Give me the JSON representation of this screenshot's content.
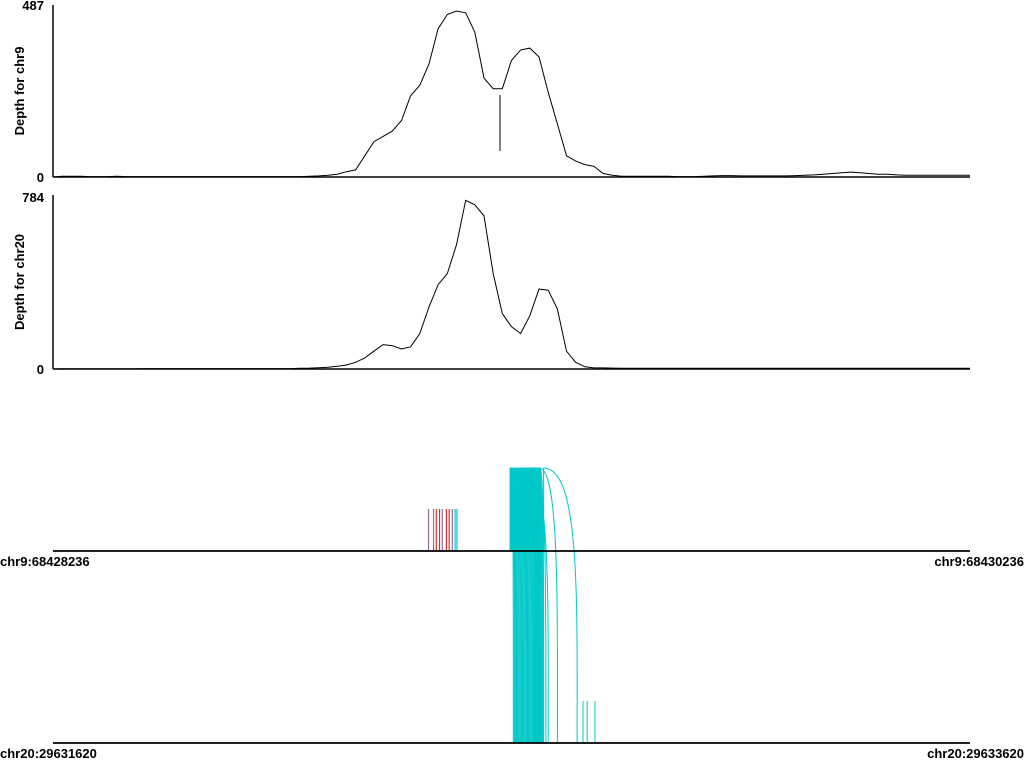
{
  "chart_data": [
    {
      "type": "line",
      "ylabel": "Depth for chr9",
      "ylim": [
        0,
        487
      ],
      "ytick_labels": [
        "0",
        "487"
      ],
      "x": [
        0,
        20,
        40,
        60,
        80,
        100,
        120,
        140,
        160,
        180,
        200,
        220,
        240,
        260,
        280,
        300,
        320,
        340,
        360,
        380,
        400,
        420,
        440,
        460,
        480,
        500,
        520,
        540,
        560,
        580,
        600,
        620,
        640,
        660,
        680,
        700,
        720,
        740,
        760,
        780,
        800,
        820,
        840,
        860,
        880,
        900,
        920,
        940,
        960,
        980,
        1000,
        1020,
        1040,
        1060,
        1080,
        1100,
        1120,
        1140,
        1160,
        1180,
        1200,
        1220,
        1240,
        1260,
        1280,
        1300,
        1320,
        1340,
        1360,
        1380,
        1400,
        1420,
        1440,
        1460,
        1480,
        1500,
        1520,
        1540,
        1560,
        1580,
        1600,
        1620,
        1640,
        1660,
        1680,
        1700,
        1720,
        1740,
        1760,
        1780,
        1800,
        1820,
        1840,
        1860,
        1880,
        1900,
        1920,
        1940,
        1960,
        1980,
        2000
      ],
      "values": [
        0,
        2,
        2,
        2,
        1,
        1,
        1,
        2,
        1,
        1,
        1,
        1,
        1,
        1,
        1,
        1,
        1,
        1,
        1,
        1,
        1,
        1,
        1,
        1,
        1,
        1,
        1,
        1,
        2,
        3,
        5,
        8,
        15,
        20,
        60,
        100,
        115,
        130,
        160,
        230,
        260,
        320,
        420,
        460,
        470,
        465,
        410,
        280,
        250,
        250,
        330,
        360,
        365,
        340,
        240,
        150,
        60,
        45,
        35,
        30,
        10,
        5,
        2,
        2,
        2,
        2,
        2,
        2,
        1,
        1,
        1,
        2,
        3,
        4,
        4,
        3,
        3,
        3,
        3,
        3,
        3,
        4,
        5,
        6,
        8,
        10,
        12,
        14,
        12,
        10,
        8,
        8,
        6,
        5,
        5,
        5,
        5,
        5,
        5,
        5,
        5
      ]
    },
    {
      "type": "line",
      "ylabel": "Depth for chr20",
      "ylim": [
        0,
        784
      ],
      "ytick_labels": [
        "0",
        "784"
      ],
      "x": [
        0,
        20,
        40,
        60,
        80,
        100,
        120,
        140,
        160,
        180,
        200,
        220,
        240,
        260,
        280,
        300,
        320,
        340,
        360,
        380,
        400,
        420,
        440,
        460,
        480,
        500,
        520,
        540,
        560,
        580,
        600,
        620,
        640,
        660,
        680,
        700,
        720,
        740,
        760,
        780,
        800,
        820,
        840,
        860,
        880,
        900,
        920,
        940,
        960,
        980,
        1000,
        1020,
        1040,
        1060,
        1080,
        1100,
        1120,
        1140,
        1160,
        1180,
        1200,
        1220,
        1240,
        1260,
        1280,
        1300,
        1320,
        1340,
        1360,
        1380,
        1400,
        1420,
        1440,
        1460,
        1480,
        1500,
        1520,
        1540,
        1560,
        1580,
        1600,
        1620,
        1640,
        1660,
        1680,
        1700,
        1720,
        1740,
        1760,
        1780,
        1800,
        1820,
        1840,
        1860,
        1880,
        1900,
        1920,
        1940,
        1960,
        1980,
        2000
      ],
      "values": [
        0,
        1,
        1,
        1,
        1,
        1,
        1,
        1,
        1,
        1,
        2,
        2,
        2,
        2,
        2,
        2,
        2,
        2,
        2,
        2,
        2,
        2,
        2,
        2,
        2,
        2,
        2,
        3,
        4,
        6,
        8,
        12,
        18,
        30,
        50,
        80,
        110,
        105,
        90,
        100,
        160,
        280,
        380,
        430,
        560,
        760,
        740,
        690,
        430,
        250,
        190,
        160,
        240,
        360,
        355,
        270,
        80,
        30,
        10,
        5,
        5,
        4,
        3,
        3,
        3,
        3,
        3,
        3,
        3,
        3,
        3,
        3,
        3,
        3,
        3,
        3,
        3,
        3,
        3,
        3,
        3,
        3,
        3,
        3,
        3,
        3,
        3,
        3,
        3,
        3,
        3,
        3,
        3,
        3,
        3,
        3,
        3,
        3,
        3,
        3,
        3
      ]
    }
  ],
  "tracks": {
    "top": {
      "start_label": "chr9:68428236",
      "end_label": "chr9:68430236"
    },
    "bottom": {
      "start_label": "chr20:29631620",
      "end_label": "chr20:29633620"
    }
  },
  "links": {
    "colors": {
      "cyan": "#00c8c8",
      "purple": "#8a6fa0",
      "red": "#e03030"
    },
    "chr9_ticks": [
      {
        "pos": 819,
        "color": "purple"
      },
      {
        "pos": 830,
        "color": "purple"
      },
      {
        "pos": 836,
        "color": "red"
      },
      {
        "pos": 843,
        "color": "red"
      },
      {
        "pos": 849,
        "color": "purple"
      },
      {
        "pos": 858,
        "color": "red"
      },
      {
        "pos": 864,
        "color": "red"
      },
      {
        "pos": 871,
        "color": "purple"
      },
      {
        "pos": 877,
        "color": "cyan"
      },
      {
        "pos": 881,
        "color": "cyan"
      }
    ],
    "cyan_connections": [
      [
        997,
        1004
      ],
      [
        999,
        1006
      ],
      [
        1001,
        1008
      ],
      [
        1003,
        1010
      ],
      [
        1005,
        1012
      ],
      [
        1007,
        1014
      ],
      [
        1009,
        1016
      ],
      [
        1011,
        1018
      ],
      [
        1013,
        1020
      ],
      [
        1015,
        1022
      ],
      [
        1017,
        1024
      ],
      [
        1019,
        1026
      ],
      [
        1021,
        1028
      ],
      [
        1023,
        1030
      ],
      [
        1025,
        1032
      ],
      [
        1027,
        1034
      ],
      [
        1029,
        1036
      ],
      [
        1031,
        1038
      ],
      [
        1033,
        1040
      ],
      [
        1035,
        1042
      ],
      [
        1037,
        1044
      ],
      [
        1039,
        1046
      ],
      [
        1041,
        1048
      ],
      [
        1043,
        1050
      ],
      [
        1045,
        1052
      ],
      [
        1047,
        1054
      ],
      [
        1049,
        1056
      ],
      [
        1051,
        1058
      ],
      [
        1053,
        1060
      ],
      [
        1055,
        1062
      ],
      [
        1057,
        1064
      ],
      [
        1059,
        1066
      ],
      [
        1061,
        1068
      ],
      [
        1063,
        1070
      ],
      [
        1030,
        1080
      ],
      [
        1040,
        1055
      ],
      [
        1050,
        1075
      ],
      [
        1038,
        1062
      ],
      [
        1055,
        1053
      ],
      [
        1060,
        1052
      ],
      [
        1045,
        1051
      ],
      [
        1055,
        1057
      ],
      [
        1058,
        1059
      ],
      [
        1055,
        1067
      ],
      [
        1056,
        1064
      ],
      [
        1048,
        1063
      ],
      [
        1052,
        1061
      ],
      [
        1062,
        1058
      ],
      [
        1063,
        1059
      ],
      [
        1060,
        1100
      ],
      [
        1070,
        1143
      ]
    ],
    "chr20_extra_ticks": [
      {
        "pos": 1156,
        "color": "cyan"
      },
      {
        "pos": 1165,
        "color": "cyan"
      },
      {
        "pos": 1182,
        "color": "cyan"
      }
    ]
  }
}
